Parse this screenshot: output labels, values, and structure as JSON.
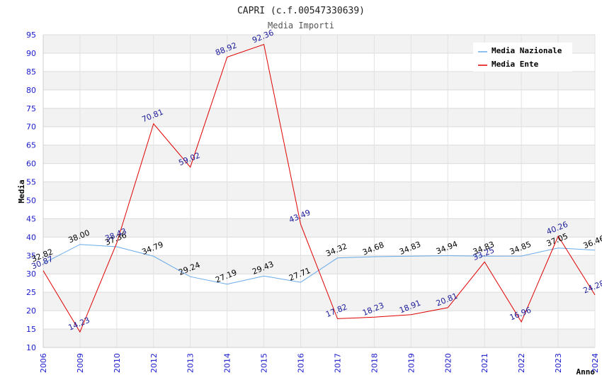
{
  "chart_data": {
    "type": "line",
    "title": "CAPRI (c.f.00547330639)",
    "subtitle": "Media Importi",
    "xlabel": "Anno",
    "ylabel": "Media",
    "ylim": [
      10,
      95
    ],
    "ystep": 5,
    "categories": [
      "2006",
      "2009",
      "2010",
      "2012",
      "2013",
      "2014",
      "2015",
      "2016",
      "2017",
      "2018",
      "2019",
      "2020",
      "2021",
      "2022",
      "2023",
      "2024"
    ],
    "series": [
      {
        "name": "Media Nazionale",
        "color": "#6aaaea",
        "label_color": "#000000",
        "values": [
          32.82,
          38.0,
          37.36,
          34.79,
          29.24,
          27.19,
          29.43,
          27.71,
          34.32,
          34.68,
          34.83,
          34.94,
          34.83,
          34.85,
          37.05,
          36.46
        ],
        "labels": [
          "32.82",
          "38.00",
          "37.36",
          "34.79",
          "29.24",
          "27.19",
          "29.43",
          "27.71",
          "34.32",
          "34.68",
          "34.83",
          "34.94",
          "34.83",
          "34.85",
          "37.05",
          "36.46"
        ]
      },
      {
        "name": "Media Ente",
        "color": "#e00000",
        "label_color": "#1a1a99",
        "values": [
          30.87,
          14.23,
          38.43,
          70.81,
          59.02,
          88.92,
          92.36,
          43.49,
          17.82,
          18.23,
          18.91,
          20.81,
          33.25,
          16.96,
          40.26,
          24.28
        ],
        "labels": [
          "30.87",
          "14.23",
          "38.43",
          "70.81",
          "59.02",
          "88.92",
          "92.36",
          "43.49",
          "17.82",
          "18.23",
          "18.91",
          "20.81",
          "33.25",
          "16.96",
          "40.26",
          "24.28"
        ]
      }
    ],
    "legend_position": "top-right"
  }
}
